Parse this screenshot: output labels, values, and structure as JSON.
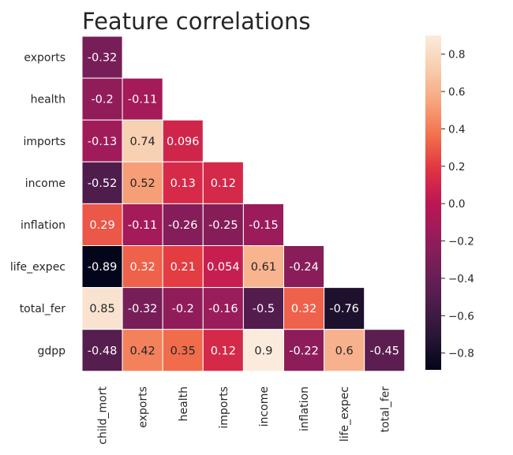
{
  "chart_data": {
    "type": "heatmap",
    "title": "Feature correlations",
    "row_labels": [
      "exports",
      "health",
      "imports",
      "income",
      "inflation",
      "life_expec",
      "total_fer",
      "gdpp"
    ],
    "col_labels": [
      "child_mort",
      "exports",
      "health",
      "imports",
      "income",
      "inflation",
      "life_expec",
      "total_fer"
    ],
    "values": [
      [
        -0.32
      ],
      [
        -0.2,
        -0.11
      ],
      [
        -0.13,
        0.74,
        0.096
      ],
      [
        -0.52,
        0.52,
        0.13,
        0.12
      ],
      [
        0.29,
        -0.11,
        -0.26,
        -0.25,
        -0.15
      ],
      [
        -0.89,
        0.32,
        0.21,
        0.054,
        0.61,
        -0.24
      ],
      [
        0.85,
        -0.32,
        -0.2,
        -0.16,
        -0.5,
        0.32,
        -0.76
      ],
      [
        -0.48,
        0.42,
        0.35,
        0.12,
        0.9,
        -0.22,
        0.6,
        -0.45
      ]
    ],
    "mask": "upper-triangle",
    "colorbar": {
      "ticks": [
        0.8,
        0.6,
        0.4,
        0.2,
        0.0,
        -0.2,
        -0.4,
        -0.6,
        -0.8
      ],
      "tick_labels": [
        "0.8",
        "0.6",
        "0.4",
        "0.2",
        "0.0",
        "−0.2",
        "−0.4",
        "−0.6",
        "−0.8"
      ],
      "range": [
        -0.89,
        0.9
      ],
      "colormap": "rocket"
    },
    "grid": false,
    "legend": "colorbar-right"
  }
}
